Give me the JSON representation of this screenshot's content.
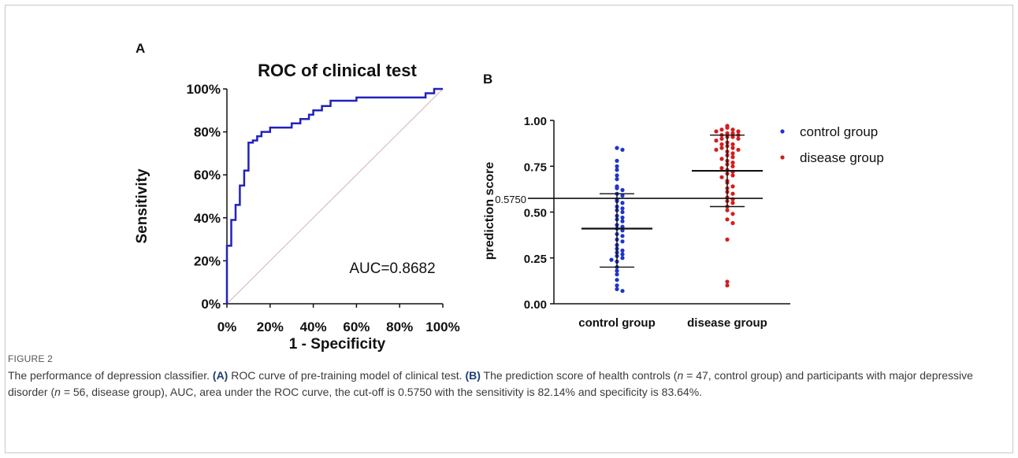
{
  "panel_a": {
    "letter": "A",
    "title": "ROC of clinical test",
    "xlabel": "1 - Specificity",
    "ylabel": "Sensitivity",
    "auc_text": "AUC=0.8682",
    "xticks": [
      "0%",
      "20%",
      "40%",
      "60%",
      "80%",
      "100%"
    ],
    "yticks": [
      "0%",
      "20%",
      "40%",
      "60%",
      "80%",
      "100%"
    ]
  },
  "panel_b": {
    "letter": "B",
    "ylabel": "prediction score",
    "yticks": [
      "0.00",
      "0.25",
      "0.50",
      "0.75",
      "1.00"
    ],
    "categories": [
      "control group",
      "disease group"
    ],
    "cutoff_text": "0.5750",
    "legend": [
      "control group",
      "disease group"
    ]
  },
  "caption": {
    "label": "FIGURE 2",
    "t1": "The performance of depression classifier. ",
    "a_ref": "(A)",
    "t2": " ROC curve of pre-training model of clinical test. ",
    "b_ref": "(B)",
    "t3": " The prediction score of health controls (",
    "n1_var": "n",
    "n1_rest": " = 47, control group) and participants with major depressive disorder (",
    "n2_var": "n",
    "n2_rest": " = 56, disease group), AUC, area under the ROC curve, the cut-off is 0.5750 with the sensitivity is 82.14% and specificity is 83.64%."
  },
  "colors": {
    "roc": "#2222bb",
    "diagonal": "#d8b0b0",
    "control": "#1f35c8",
    "disease": "#d11f1f",
    "axis": "#111111",
    "figure_label": "#1f3f70"
  },
  "chart_data": [
    {
      "type": "line",
      "title": "ROC of clinical test",
      "xlabel": "1 - Specificity",
      "ylabel": "Sensitivity",
      "xlim": [
        0,
        1
      ],
      "ylim": [
        0,
        1
      ],
      "annotation": "AUC=0.8682",
      "series": [
        {
          "x": [
            0,
            0,
            0.02,
            0.02,
            0.04,
            0.04,
            0.06,
            0.06,
            0.08,
            0.08,
            0.1,
            0.1,
            0.12,
            0.12,
            0.14,
            0.14,
            0.16,
            0.16,
            0.2,
            0.2,
            0.3,
            0.3,
            0.34,
            0.34,
            0.38,
            0.38,
            0.4,
            0.4,
            0.44,
            0.44,
            0.48,
            0.48,
            0.6,
            0.6,
            0.92,
            0.92,
            0.96,
            0.96,
            1.0
          ],
          "y": [
            0,
            0.27,
            0.27,
            0.39,
            0.39,
            0.46,
            0.46,
            0.55,
            0.55,
            0.62,
            0.62,
            0.75,
            0.75,
            0.76,
            0.76,
            0.78,
            0.78,
            0.8,
            0.8,
            0.82,
            0.82,
            0.84,
            0.84,
            0.86,
            0.86,
            0.88,
            0.88,
            0.9,
            0.9,
            0.92,
            0.92,
            0.945,
            0.945,
            0.96,
            0.96,
            0.98,
            0.98,
            1.0,
            1.0
          ]
        },
        {
          "x": [
            0,
            1
          ],
          "y": [
            0,
            1
          ]
        }
      ]
    },
    {
      "type": "scatter",
      "ylabel": "prediction score",
      "categories": [
        "control group",
        "disease group"
      ],
      "ylim": [
        0,
        1
      ],
      "cutoff": 0.575,
      "series": [
        {
          "name": "control group",
          "mean": 0.41,
          "sd_low": 0.2,
          "sd_high": 0.6,
          "values": [
            0.85,
            0.84,
            0.78,
            0.75,
            0.73,
            0.7,
            0.68,
            0.64,
            0.63,
            0.62,
            0.6,
            0.59,
            0.57,
            0.56,
            0.55,
            0.53,
            0.52,
            0.51,
            0.5,
            0.48,
            0.47,
            0.46,
            0.45,
            0.43,
            0.42,
            0.41,
            0.4,
            0.38,
            0.37,
            0.35,
            0.34,
            0.32,
            0.3,
            0.29,
            0.28,
            0.27,
            0.26,
            0.25,
            0.24,
            0.23,
            0.2,
            0.18,
            0.16,
            0.13,
            0.1,
            0.08,
            0.07
          ]
        },
        {
          "name": "disease group",
          "mean": 0.725,
          "sd_low": 0.53,
          "sd_high": 0.92,
          "values": [
            0.97,
            0.96,
            0.95,
            0.95,
            0.94,
            0.94,
            0.93,
            0.93,
            0.92,
            0.92,
            0.91,
            0.91,
            0.9,
            0.9,
            0.89,
            0.88,
            0.87,
            0.87,
            0.86,
            0.85,
            0.85,
            0.84,
            0.84,
            0.83,
            0.82,
            0.81,
            0.8,
            0.79,
            0.78,
            0.77,
            0.76,
            0.75,
            0.74,
            0.73,
            0.72,
            0.71,
            0.7,
            0.69,
            0.67,
            0.66,
            0.64,
            0.63,
            0.61,
            0.6,
            0.58,
            0.57,
            0.56,
            0.55,
            0.53,
            0.51,
            0.49,
            0.46,
            0.44,
            0.35,
            0.12,
            0.1
          ]
        }
      ]
    }
  ]
}
